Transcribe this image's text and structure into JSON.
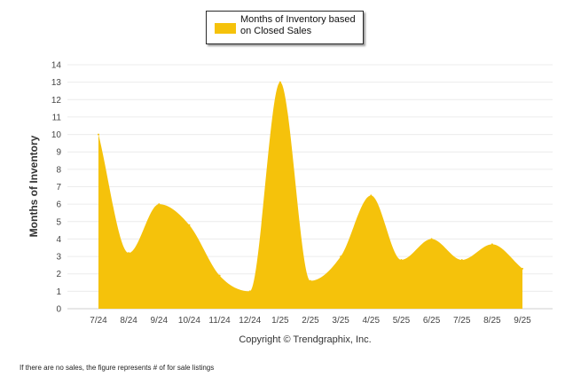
{
  "chart_data": {
    "type": "area",
    "categories": [
      "7/24",
      "8/24",
      "9/24",
      "10/24",
      "11/24",
      "12/24",
      "1/25",
      "2/25",
      "3/25",
      "4/25",
      "5/25",
      "6/25",
      "7/25",
      "8/25",
      "9/25"
    ],
    "series": [
      {
        "name": "Months of Inventory based on Closed Sales",
        "values": [
          10.0,
          3.2,
          6.0,
          4.8,
          1.9,
          1.0,
          13.0,
          1.6,
          3.0,
          6.5,
          2.8,
          4.0,
          2.8,
          3.7,
          2.3
        ],
        "color": "#F5C20B"
      }
    ],
    "ylabel": "Months of Inventory",
    "xlabel": "",
    "ylim": [
      0,
      14
    ],
    "yticks": [
      "0",
      "1",
      "2",
      "3",
      "4",
      "5",
      "6",
      "7",
      "8",
      "9",
      "10",
      "11",
      "12",
      "13",
      "14"
    ],
    "grid": true,
    "legend_position": "top-center",
    "copyright": "Copyright © Trendgraphix, Inc.",
    "footnote": "If there are no sales, the figure represents # of for sale listings"
  }
}
